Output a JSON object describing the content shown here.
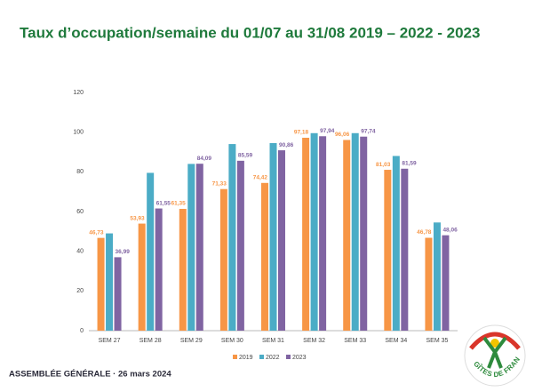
{
  "chart_data": {
    "type": "bar",
    "title": "Taux d’occupation/semaine du 01/07 au 31/08 2019 – 2022 - 2023",
    "categories": [
      "SEM 27",
      "SEM 28",
      "SEM 29",
      "SEM 30",
      "SEM 31",
      "SEM 32",
      "SEM 33",
      "SEM 34",
      "SEM 35"
    ],
    "series": [
      {
        "name": "2019",
        "color": "#f79646",
        "values": [
          46.73,
          53.93,
          61.35,
          71.33,
          74.42,
          97.18,
          96.06,
          81.03,
          46.78
        ],
        "value_labels": [
          "46,73",
          "53,93",
          "61,35",
          "71,33",
          "74,42",
          "97,18",
          "96,06",
          "81,03",
          "46,78"
        ]
      },
      {
        "name": "2022",
        "color": "#4bacc6",
        "values": [
          49,
          79.5,
          84,
          94,
          94.5,
          99.5,
          99.5,
          88,
          54.5
        ]
      },
      {
        "name": "2023",
        "color": "#8064a2",
        "values": [
          36.99,
          61.55,
          84.09,
          85.59,
          90.86,
          97.94,
          97.74,
          81.59,
          48.06
        ],
        "value_labels": [
          "36,99",
          "61,55",
          "84,09",
          "85,59",
          "90,86",
          "97,94",
          "97,74",
          "81,59",
          "48,06"
        ]
      }
    ],
    "ylim": [
      0,
      120
    ],
    "yticks": [
      0,
      20,
      40,
      60,
      80,
      100,
      120
    ],
    "grid": false,
    "legend": "bottom"
  },
  "footer": "ASSEMBLÉE GÉNÉRALE · 26 mars 2024",
  "logo": "GÎTES DE FRANCE"
}
